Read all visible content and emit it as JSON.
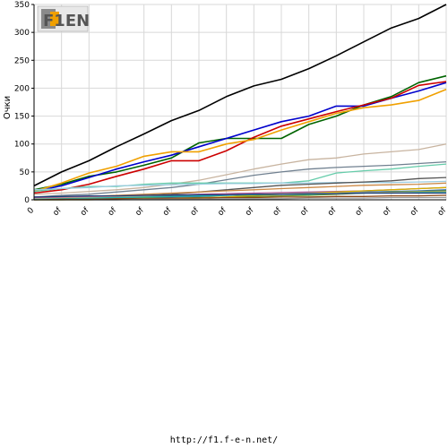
{
  "logo": {
    "text": "F1EN"
  },
  "footer": {
    "url": "http://f1.f-e-n.net/"
  },
  "chart_data": {
    "type": "line",
    "ylabel": "Очки",
    "xlabel": "",
    "ylim": [
      0,
      350
    ],
    "yticks": [
      0,
      50,
      100,
      150,
      200,
      250,
      300,
      350
    ],
    "categories": [
      "0",
      "of",
      "of",
      "of",
      "of",
      "of",
      "of",
      "of",
      "of",
      "of",
      "of",
      "of",
      "of",
      "of",
      "of",
      "of"
    ],
    "grid": true,
    "series": [
      {
        "color": "#000000",
        "values": [
          25,
          50,
          70,
          95,
          118,
          142,
          160,
          185,
          204,
          216,
          235,
          258,
          283,
          308,
          325,
          350
        ]
      },
      {
        "color": "#006400",
        "values": [
          18,
          28,
          42,
          50,
          62,
          75,
          102,
          110,
          110,
          110,
          135,
          150,
          170,
          185,
          210,
          222
        ]
      },
      {
        "color": "#0000cc",
        "values": [
          15,
          25,
          40,
          55,
          68,
          80,
          95,
          110,
          125,
          140,
          150,
          168,
          168,
          182,
          195,
          210
        ]
      },
      {
        "color": "#cc0000",
        "values": [
          12,
          18,
          28,
          42,
          55,
          70,
          70,
          88,
          112,
          132,
          145,
          158,
          170,
          182,
          205,
          212
        ]
      },
      {
        "color": "#f0a000",
        "values": [
          15,
          30,
          48,
          60,
          78,
          86,
          86,
          100,
          108,
          125,
          140,
          155,
          165,
          170,
          178,
          198
        ]
      },
      {
        "color": "#c8b4a0",
        "values": [
          10,
          12,
          15,
          18,
          22,
          28,
          35,
          45,
          55,
          64,
          72,
          75,
          82,
          86,
          90,
          100
        ]
      },
      {
        "color": "#708090",
        "values": [
          5,
          8,
          10,
          14,
          18,
          22,
          28,
          36,
          44,
          50,
          55,
          58,
          60,
          62,
          65,
          68
        ]
      },
      {
        "color": "#66ccaa",
        "values": [
          15,
          20,
          24,
          24,
          28,
          30,
          30,
          30,
          30,
          30,
          34,
          48,
          52,
          55,
          60,
          64
        ]
      },
      {
        "color": "#9ccce0",
        "values": [
          18,
          20,
          22,
          25,
          26,
          27,
          28,
          29,
          29,
          30,
          30,
          31,
          31,
          31,
          32,
          33
        ]
      },
      {
        "color": "#555555",
        "values": [
          2,
          3,
          4,
          5,
          8,
          10,
          14,
          18,
          22,
          26,
          28,
          30,
          32,
          34,
          38,
          40
        ]
      },
      {
        "color": "#cc8844",
        "values": [
          4,
          5,
          6,
          8,
          10,
          12,
          14,
          16,
          18,
          20,
          22,
          24,
          26,
          27,
          28,
          30
        ]
      },
      {
        "color": "#aa5599",
        "values": [
          3,
          4,
          5,
          6,
          7,
          8,
          10,
          11,
          12,
          13,
          14,
          15,
          16,
          18,
          20,
          22
        ]
      },
      {
        "color": "#2e6fb0",
        "values": [
          1,
          1,
          2,
          3,
          4,
          5,
          6,
          8,
          9,
          11,
          12,
          13,
          14,
          15,
          16,
          18
        ]
      },
      {
        "color": "#6b8e23",
        "values": [
          0,
          0,
          1,
          2,
          3,
          3,
          4,
          5,
          6,
          7,
          8,
          10,
          12,
          14,
          15,
          16
        ]
      },
      {
        "color": "#d4b000",
        "values": [
          0,
          0,
          0,
          1,
          1,
          2,
          3,
          5,
          8,
          10,
          12,
          14,
          16,
          18,
          20,
          22
        ]
      },
      {
        "color": "#d2b48c",
        "values": [
          2,
          3,
          4,
          5,
          6,
          7,
          8,
          9,
          10,
          11,
          12,
          12,
          13,
          13,
          14,
          14
        ]
      },
      {
        "color": "#20b2aa",
        "values": [
          1,
          2,
          3,
          4,
          5,
          6,
          7,
          8,
          9,
          10,
          10,
          11,
          12,
          12,
          13,
          13
        ]
      },
      {
        "color": "#8b4513",
        "values": [
          0,
          1,
          1,
          2,
          2,
          3,
          3,
          4,
          4,
          5,
          5,
          6,
          6,
          7,
          7,
          8
        ]
      },
      {
        "color": "#1e3c78",
        "values": [
          5,
          6,
          7,
          7,
          8,
          8,
          9,
          9,
          10,
          10,
          11,
          11,
          12,
          12,
          12,
          12
        ]
      },
      {
        "color": "#999999",
        "values": [
          0,
          0,
          0,
          0,
          1,
          1,
          1,
          2,
          2,
          2,
          3,
          3,
          3,
          4,
          4,
          4
        ]
      }
    ]
  }
}
